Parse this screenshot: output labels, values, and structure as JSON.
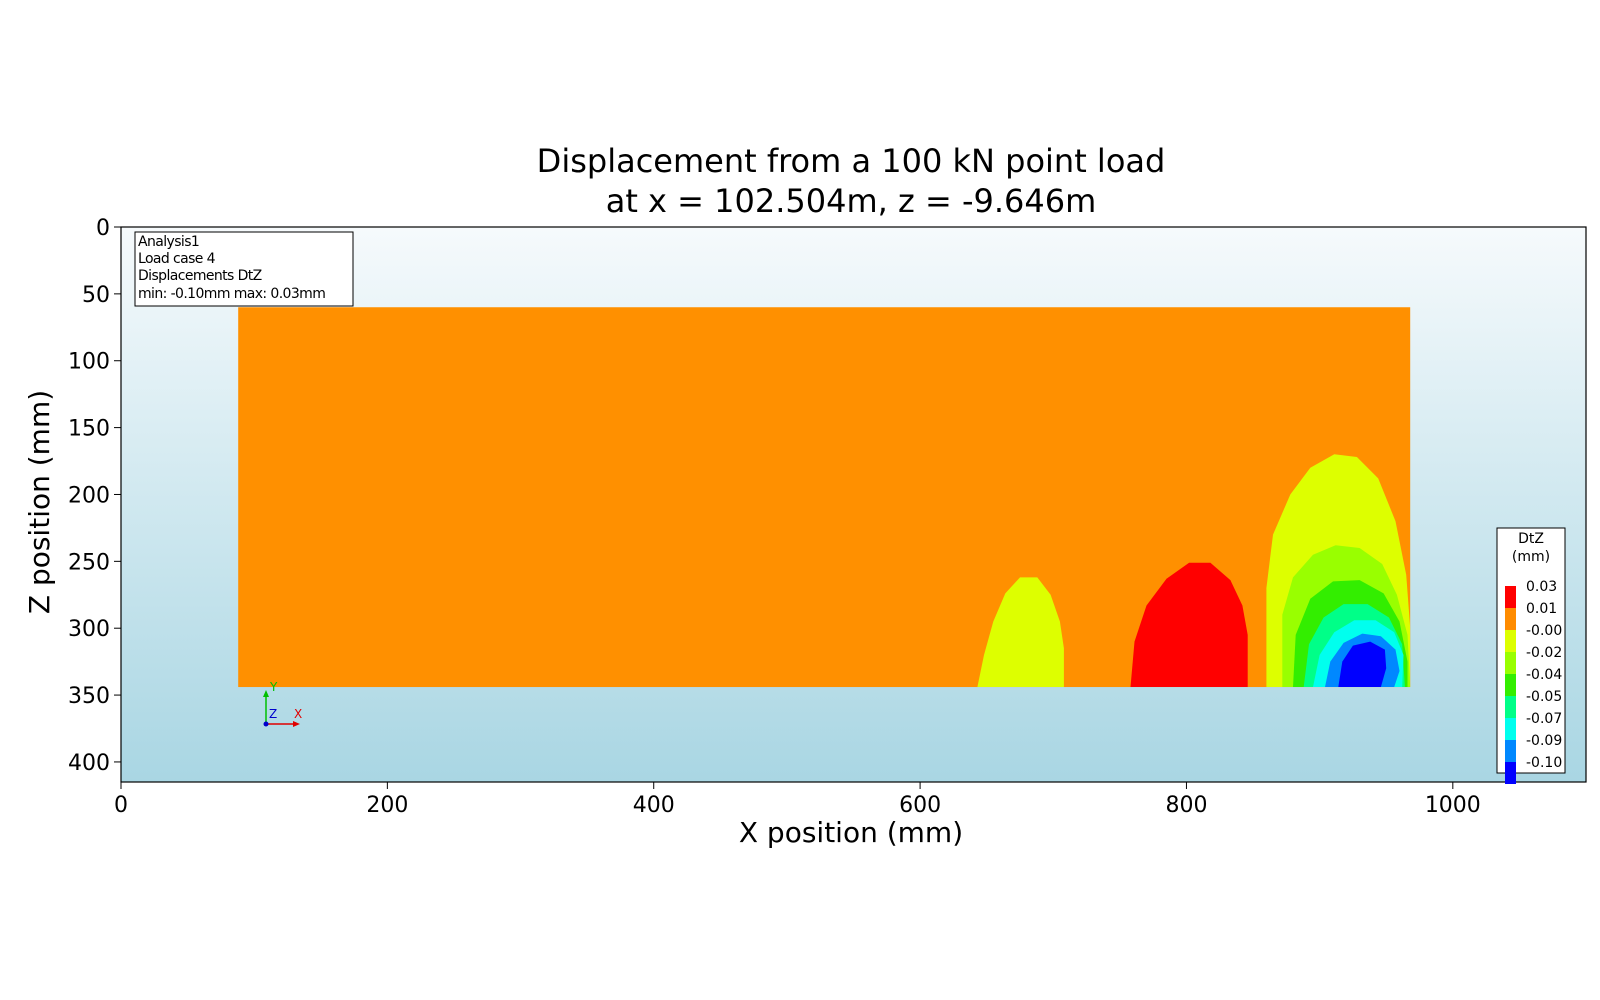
{
  "chart_data": {
    "type": "heatmap",
    "title": [
      "Displacement from a 100 kN point load",
      "at x = 102.504m, z = -9.646m"
    ],
    "xlabel": "X position (mm)",
    "ylabel": "Z position (mm)",
    "xlim": [
      0,
      1100
    ],
    "ylim": [
      415,
      0
    ],
    "x_ticks": [
      0,
      200,
      400,
      600,
      800,
      1000
    ],
    "y_ticks": [
      0,
      50,
      100,
      150,
      200,
      250,
      300,
      350,
      400
    ],
    "grid": false,
    "info_box": [
      "Analysis1",
      "Load case 4",
      "Displacements DtZ",
      "min: -0.10mm max:  0.03mm"
    ],
    "colorbar": {
      "title": [
        "DtZ",
        "(mm)"
      ],
      "placement": "right",
      "entries": [
        {
          "label": "0.03",
          "color": "#ff0000"
        },
        {
          "label": "0.01",
          "color": "#ff8c00"
        },
        {
          "label": "-0.00",
          "color": "#ddff00"
        },
        {
          "label": "-0.02",
          "color": "#99ff00"
        },
        {
          "label": "-0.04",
          "color": "#33ee00"
        },
        {
          "label": "-0.05",
          "color": "#00ff88"
        },
        {
          "label": "-0.07",
          "color": "#00ffee"
        },
        {
          "label": "-0.09",
          "color": "#0088ff"
        },
        {
          "label": "-0.10",
          "color": "#0000ff"
        }
      ]
    },
    "plate": {
      "x": [
        88,
        968
      ],
      "z": [
        60,
        344
      ],
      "color": "#ff9000"
    },
    "contours": [
      {
        "label": "-0.00",
        "color": "#ddff00",
        "points": [
          [
            643,
            344
          ],
          [
            648,
            320
          ],
          [
            655,
            295
          ],
          [
            664,
            274
          ],
          [
            675,
            262
          ],
          [
            688,
            262
          ],
          [
            698,
            275
          ],
          [
            705,
            295
          ],
          [
            708,
            315
          ],
          [
            708,
            344
          ]
        ]
      },
      {
        "label": "0.03",
        "color": "#ff0000",
        "points": [
          [
            758,
            344
          ],
          [
            761,
            310
          ],
          [
            770,
            283
          ],
          [
            785,
            263
          ],
          [
            802,
            251
          ],
          [
            818,
            251
          ],
          [
            833,
            264
          ],
          [
            842,
            283
          ],
          [
            846,
            305
          ],
          [
            846,
            344
          ]
        ]
      },
      {
        "label": "-0.00",
        "color": "#ddff00",
        "points": [
          [
            860,
            344
          ],
          [
            860,
            270
          ],
          [
            865,
            230
          ],
          [
            878,
            200
          ],
          [
            893,
            180
          ],
          [
            911,
            170
          ],
          [
            928,
            172
          ],
          [
            944,
            188
          ],
          [
            957,
            220
          ],
          [
            965,
            260
          ],
          [
            968,
            300
          ],
          [
            968,
            344
          ]
        ]
      },
      {
        "label": "-0.02",
        "color": "#99ff00",
        "points": [
          [
            872,
            344
          ],
          [
            872,
            290
          ],
          [
            880,
            262
          ],
          [
            895,
            245
          ],
          [
            912,
            238
          ],
          [
            930,
            240
          ],
          [
            947,
            252
          ],
          [
            958,
            275
          ],
          [
            966,
            305
          ],
          [
            968,
            344
          ]
        ]
      },
      {
        "label": "-0.04",
        "color": "#33ee00",
        "points": [
          [
            880,
            344
          ],
          [
            882,
            305
          ],
          [
            893,
            278
          ],
          [
            910,
            265
          ],
          [
            930,
            264
          ],
          [
            948,
            274
          ],
          [
            960,
            295
          ],
          [
            966,
            325
          ],
          [
            966,
            344
          ]
        ]
      },
      {
        "label": "-0.05",
        "color": "#00ff88",
        "points": [
          [
            888,
            344
          ],
          [
            892,
            312
          ],
          [
            903,
            292
          ],
          [
            918,
            282
          ],
          [
            936,
            282
          ],
          [
            952,
            292
          ],
          [
            962,
            312
          ],
          [
            964,
            344
          ]
        ]
      },
      {
        "label": "-0.07",
        "color": "#00ffee",
        "points": [
          [
            895,
            344
          ],
          [
            900,
            320
          ],
          [
            911,
            303
          ],
          [
            926,
            294
          ],
          [
            942,
            294
          ],
          [
            956,
            303
          ],
          [
            963,
            320
          ],
          [
            962,
            344
          ]
        ]
      },
      {
        "label": "-0.09",
        "color": "#0088ff",
        "points": [
          [
            904,
            344
          ],
          [
            908,
            325
          ],
          [
            918,
            311
          ],
          [
            932,
            304
          ],
          [
            946,
            306
          ],
          [
            957,
            316
          ],
          [
            960,
            332
          ],
          [
            956,
            344
          ]
        ]
      },
      {
        "label": "-0.10",
        "color": "#0000ff",
        "points": [
          [
            914,
            344
          ],
          [
            917,
            325
          ],
          [
            925,
            313
          ],
          [
            938,
            310
          ],
          [
            949,
            316
          ],
          [
            950,
            330
          ],
          [
            946,
            344
          ]
        ]
      }
    ],
    "triad": {
      "y": "Y",
      "z": "Z",
      "x": "X"
    }
  }
}
